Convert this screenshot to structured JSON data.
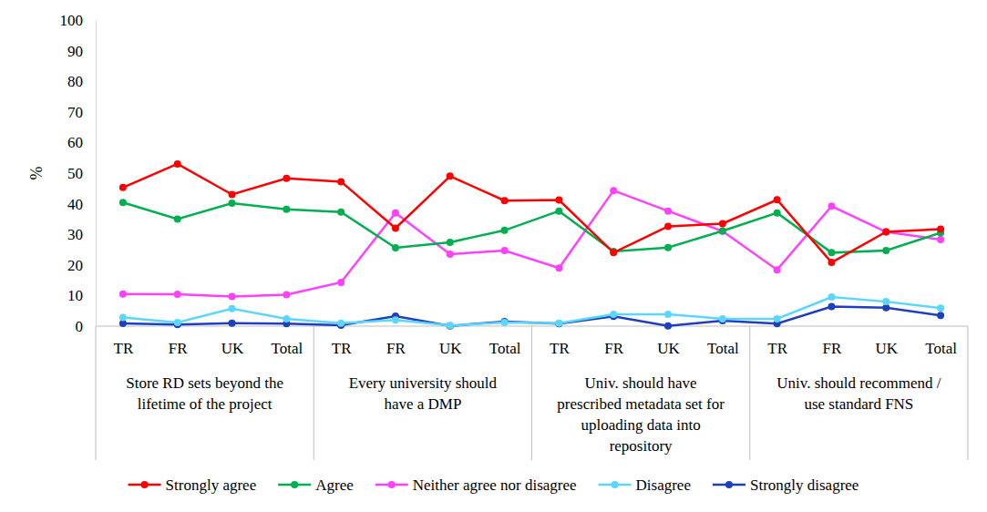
{
  "chart_data": {
    "type": "line",
    "y_label": "%",
    "categories": [
      "TR",
      "FR",
      "UK",
      "Total",
      "TR",
      "FR",
      "UK",
      "Total",
      "TR",
      "FR",
      "UK",
      "Total",
      "TR",
      "FR",
      "UK",
      "Total"
    ],
    "category_groups": [
      [
        "Store RD sets beyond the",
        "lifetime of the project"
      ],
      [
        "Every university should",
        "have a DMP"
      ],
      [
        "Univ. should have",
        "prescribed metadata set for",
        "uploading data into",
        "repository"
      ],
      [
        "Univ. should recommend /",
        "use standard FNS"
      ]
    ],
    "ylim": [
      0,
      100
    ],
    "yticks": [
      0,
      10,
      20,
      30,
      40,
      50,
      60,
      70,
      80,
      90,
      100
    ],
    "grid": false,
    "legend": "bottom",
    "marker": "circle",
    "series": [
      {
        "name": "Strongly agree",
        "color": "#ff0000",
        "values": [
          45.3,
          53,
          43,
          48.3,
          47.2,
          32,
          49,
          41,
          41.2,
          24,
          32.6,
          33.5,
          41.3,
          20.8,
          30.8,
          31.7
        ]
      },
      {
        "name": "Agree",
        "color": "#00b050",
        "values": [
          40.4,
          35,
          40.2,
          38.2,
          37.3,
          25.6,
          27.4,
          31.3,
          37.6,
          24.4,
          25.7,
          31.1,
          37,
          24,
          24.7,
          30.5
        ]
      },
      {
        "name": "Neither agree nor disagree",
        "color": "#ff40ff",
        "values": [
          10.5,
          10.4,
          9.7,
          10.3,
          14.3,
          37,
          23.5,
          24.7,
          19,
          44.3,
          37.6,
          31,
          18.4,
          39.2,
          30.8,
          28.3
        ]
      },
      {
        "name": "Disagree",
        "color": "#5bd7ff",
        "values": [
          2.8,
          1.2,
          5.7,
          2.4,
          1,
          2,
          0.2,
          1.2,
          1,
          3.9,
          3.9,
          2.4,
          2.4,
          9.5,
          8,
          5.9
        ]
      },
      {
        "name": "Strongly disagree",
        "color": "#1f3fbf",
        "values": [
          0.9,
          0.5,
          1,
          0.8,
          0.3,
          3.3,
          0.1,
          1.5,
          0.8,
          3.2,
          0.1,
          1.8,
          0.8,
          6.4,
          6,
          3.5
        ]
      }
    ]
  }
}
